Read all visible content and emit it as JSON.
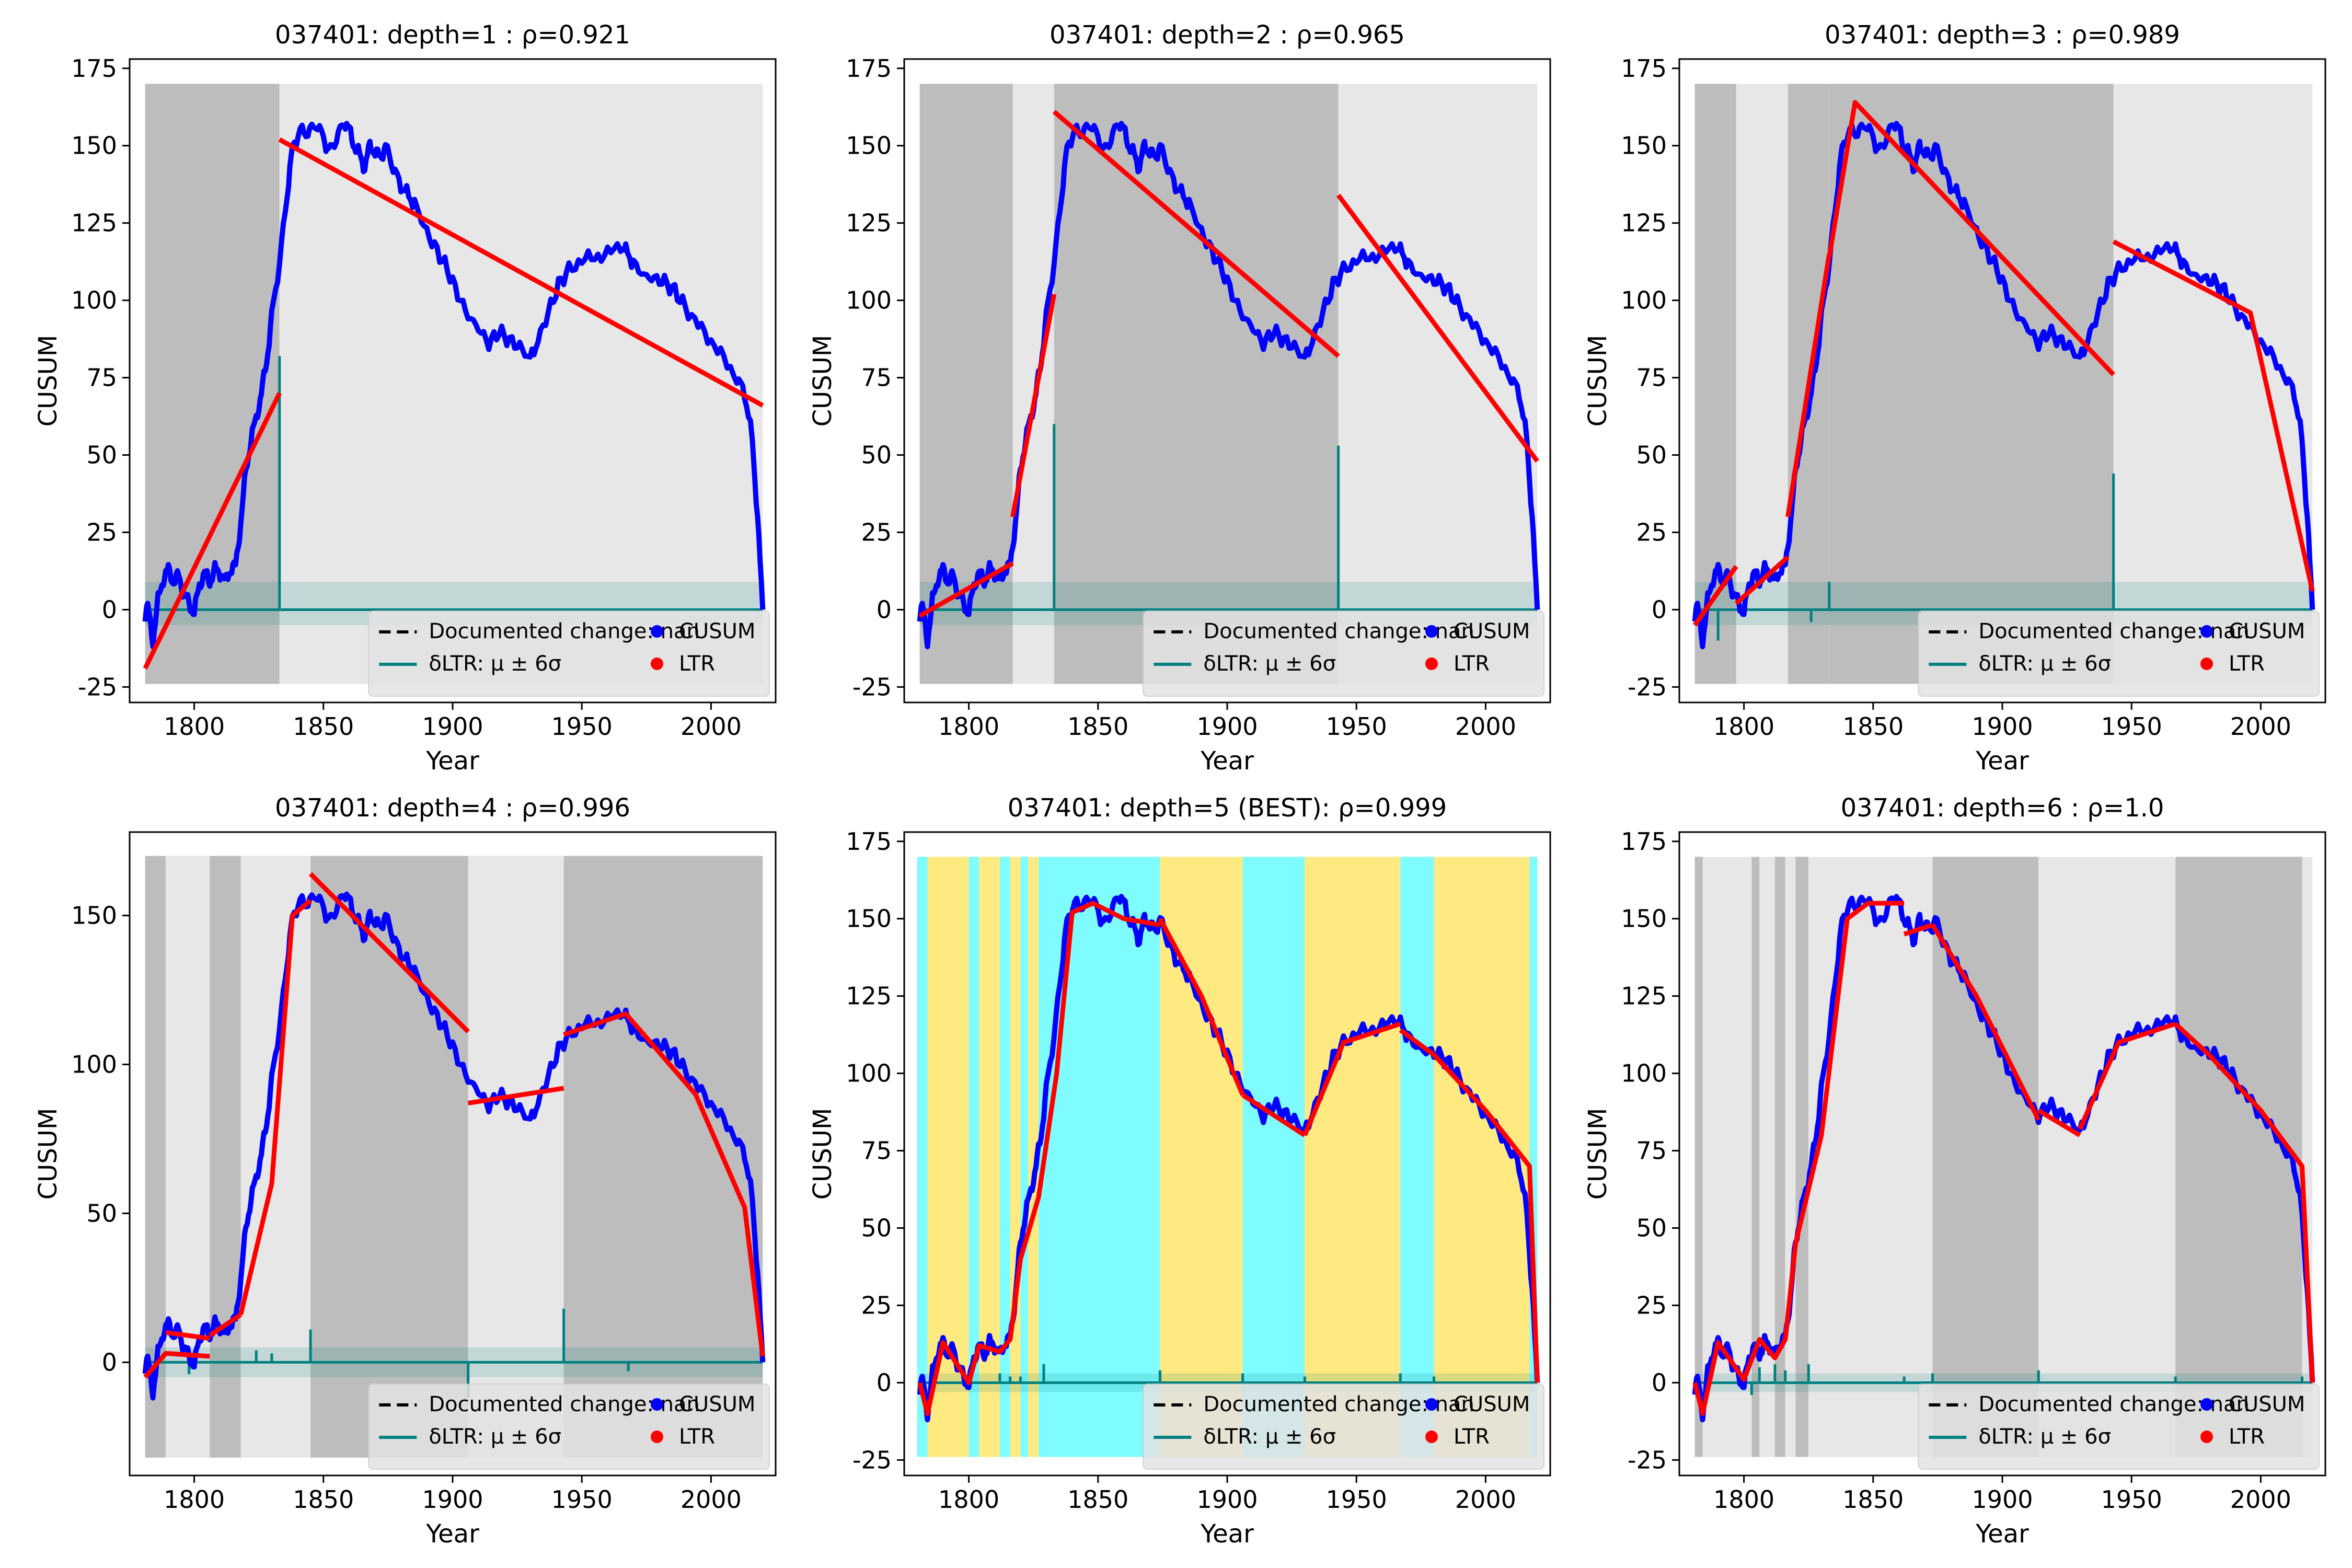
{
  "colors": {
    "cusum": "#0000ff",
    "ltr": "#ff0000",
    "dltr": "#008080",
    "seg_dark": "#bdbdbd",
    "seg_light": "#e7e7e7",
    "seg_cyan": "#7ffcff",
    "seg_yellow": "#ffe981",
    "best_title": "#ff0000"
  },
  "legend": {
    "documented": "Documented change: nan",
    "dltr": "δLTR: μ ± 6σ",
    "cusum": "CUSUM",
    "ltr": "LTR"
  },
  "chart_data": [
    {
      "type": "line",
      "title": "037401: depth=1 : ρ=0.921",
      "xlabel": "Year",
      "ylabel": "CUSUM",
      "xlim": [
        1775,
        2025
      ],
      "ylim": [
        -30,
        178
      ],
      "xticks": [
        1800,
        1850,
        1900,
        1950,
        2000
      ],
      "yticks": [
        -25,
        0,
        25,
        50,
        75,
        100,
        125,
        150,
        175
      ],
      "grid": false,
      "legend_position": "lower-right",
      "segment_style": "gray",
      "segments": [
        [
          1781,
          1833,
          "dark"
        ],
        [
          1833,
          2020,
          "light"
        ]
      ],
      "ltr_segments": [
        [
          [
            1781,
            -19
          ],
          [
            1833,
            70
          ]
        ],
        [
          [
            1833,
            152
          ],
          [
            2020,
            66
          ]
        ]
      ],
      "dltr_spikes": [
        [
          1833,
          82
        ]
      ],
      "band": [
        -5,
        9
      ],
      "band_x": [
        1781,
        2020
      ]
    },
    {
      "type": "line",
      "title": "037401: depth=2 : ρ=0.965",
      "xlabel": "Year",
      "ylabel": "CUSUM",
      "xlim": [
        1775,
        2025
      ],
      "ylim": [
        -30,
        178
      ],
      "xticks": [
        1800,
        1850,
        1900,
        1950,
        2000
      ],
      "yticks": [
        -25,
        0,
        25,
        50,
        75,
        100,
        125,
        150,
        175
      ],
      "grid": false,
      "legend_position": "lower-right",
      "segment_style": "gray",
      "segments": [
        [
          1781,
          1817,
          "dark"
        ],
        [
          1817,
          1833,
          "light"
        ],
        [
          1833,
          1943,
          "dark"
        ],
        [
          1943,
          2020,
          "light"
        ]
      ],
      "ltr_segments": [
        [
          [
            1781,
            -2
          ],
          [
            1817,
            15
          ]
        ],
        [
          [
            1817,
            30
          ],
          [
            1833,
            102
          ]
        ],
        [
          [
            1833,
            161
          ],
          [
            1943,
            82
          ]
        ],
        [
          [
            1943,
            134
          ],
          [
            2020,
            48
          ]
        ]
      ],
      "dltr_spikes": [
        [
          1833,
          60
        ],
        [
          1943,
          53
        ]
      ],
      "band": [
        -5,
        9
      ],
      "band_x": [
        1781,
        2020
      ]
    },
    {
      "type": "line",
      "title": "037401: depth=3 : ρ=0.989",
      "xlabel": "Year",
      "ylabel": "CUSUM",
      "xlim": [
        1775,
        2025
      ],
      "ylim": [
        -30,
        178
      ],
      "xticks": [
        1800,
        1850,
        1900,
        1950,
        2000
      ],
      "yticks": [
        -25,
        0,
        25,
        50,
        75,
        100,
        125,
        150,
        175
      ],
      "grid": false,
      "legend_position": "lower-right",
      "segment_style": "gray",
      "segments": [
        [
          1781,
          1797,
          "dark"
        ],
        [
          1797,
          1817,
          "light"
        ],
        [
          1817,
          1833,
          "dark"
        ],
        [
          1833,
          1943,
          "dark"
        ],
        [
          1943,
          2020,
          "light"
        ]
      ],
      "ltr_segments": [
        [
          [
            1781,
            -5
          ],
          [
            1797,
            14
          ]
        ],
        [
          [
            1797,
            2
          ],
          [
            1817,
            17
          ]
        ],
        [
          [
            1817,
            30
          ],
          [
            1833,
            115
          ]
        ],
        [
          [
            1833,
            114
          ],
          [
            1843,
            164
          ],
          [
            1943,
            76
          ]
        ],
        [
          [
            1943,
            119
          ],
          [
            1996,
            96
          ],
          [
            2020,
            6
          ]
        ]
      ],
      "dltr_spikes": [
        [
          1833,
          9
        ],
        [
          1943,
          44
        ],
        [
          1790,
          -10
        ],
        [
          1826,
          -4
        ]
      ],
      "band": [
        -5,
        9
      ],
      "band_x": [
        1781,
        2020
      ]
    },
    {
      "type": "line",
      "title": "037401: depth=4 : ρ=0.996",
      "xlabel": "Year",
      "ylabel": "CUSUM",
      "xlim": [
        1775,
        2025
      ],
      "ylim": [
        -38,
        178
      ],
      "xticks": [
        1800,
        1850,
        1900,
        1950,
        2000
      ],
      "yticks": [
        0,
        50,
        100,
        150
      ],
      "grid": false,
      "legend_position": "lower-right",
      "segment_style": "gray",
      "segments": [
        [
          1781,
          1789,
          "dark"
        ],
        [
          1789,
          1806,
          "light"
        ],
        [
          1806,
          1818,
          "dark"
        ],
        [
          1818,
          1845,
          "light"
        ],
        [
          1845,
          1906,
          "dark"
        ],
        [
          1906,
          1943,
          "light"
        ],
        [
          1943,
          2020,
          "dark"
        ]
      ],
      "ltr_segments": [
        [
          [
            1781,
            -5
          ],
          [
            1789,
            3
          ],
          [
            1806,
            2
          ]
        ],
        [
          [
            1789,
            10
          ],
          [
            1806,
            8
          ]
        ],
        [
          [
            1806,
            9
          ],
          [
            1818,
            16
          ]
        ],
        [
          [
            1818,
            16
          ],
          [
            1830,
            60
          ],
          [
            1838,
            150
          ],
          [
            1845,
            155
          ]
        ],
        [
          [
            1845,
            164
          ],
          [
            1906,
            111
          ]
        ],
        [
          [
            1906,
            87
          ],
          [
            1943,
            92
          ]
        ],
        [
          [
            1943,
            110
          ],
          [
            1967,
            117
          ],
          [
            1994,
            90
          ],
          [
            2013,
            52
          ],
          [
            2020,
            2
          ]
        ]
      ],
      "dltr_spikes": [
        [
          1845,
          11
        ],
        [
          1906,
          -12
        ],
        [
          1943,
          18
        ],
        [
          1824,
          4
        ],
        [
          1830,
          3
        ],
        [
          1798,
          -4
        ],
        [
          1968,
          -3
        ]
      ],
      "band": [
        -5,
        5
      ],
      "band_x": [
        1781,
        2020
      ]
    },
    {
      "type": "line",
      "title": "037401: depth=5 (BEST): ρ=0.999",
      "xlabel": "Year",
      "ylabel": "CUSUM",
      "xlim": [
        1775,
        2025
      ],
      "ylim": [
        -30,
        178
      ],
      "xticks": [
        1800,
        1850,
        1900,
        1950,
        2000
      ],
      "yticks": [
        -25,
        0,
        25,
        50,
        75,
        100,
        125,
        150,
        175
      ],
      "grid": false,
      "legend_position": "lower-right",
      "segment_style": "color",
      "best": true,
      "segments": [
        [
          1780,
          1784,
          "cyan"
        ],
        [
          1784,
          1800,
          "yellow"
        ],
        [
          1800,
          1804,
          "cyan"
        ],
        [
          1804,
          1812,
          "yellow"
        ],
        [
          1812,
          1816,
          "cyan"
        ],
        [
          1816,
          1820,
          "yellow"
        ],
        [
          1820,
          1823,
          "cyan"
        ],
        [
          1823,
          1827,
          "yellow"
        ],
        [
          1827,
          1829,
          "cyan"
        ],
        [
          1829,
          1874,
          "cyan"
        ],
        [
          1874,
          1906,
          "yellow"
        ],
        [
          1906,
          1930,
          "cyan"
        ],
        [
          1930,
          1967,
          "yellow"
        ],
        [
          1967,
          1980,
          "cyan"
        ],
        [
          1980,
          2017,
          "yellow"
        ],
        [
          2017,
          2020,
          "cyan"
        ]
      ],
      "ltr_segments": [
        [
          [
            1781,
            0
          ],
          [
            1784,
            -10
          ],
          [
            1790,
            13
          ],
          [
            1800,
            0
          ],
          [
            1804,
            12
          ],
          [
            1812,
            10
          ],
          [
            1816,
            14
          ],
          [
            1820,
            40
          ],
          [
            1827,
            60
          ],
          [
            1834,
            100
          ],
          [
            1840,
            152
          ],
          [
            1848,
            155
          ],
          [
            1860,
            150
          ],
          [
            1874,
            148
          ]
        ],
        [
          [
            1874,
            150
          ],
          [
            1890,
            125
          ],
          [
            1906,
            93
          ]
        ],
        [
          [
            1906,
            93
          ],
          [
            1930,
            80
          ]
        ],
        [
          [
            1930,
            80
          ],
          [
            1945,
            110
          ],
          [
            1967,
            116
          ]
        ],
        [
          [
            1967,
            114
          ],
          [
            1980,
            106
          ]
        ],
        [
          [
            1980,
            106
          ],
          [
            2000,
            88
          ],
          [
            2017,
            70
          ],
          [
            2020,
            0
          ]
        ]
      ],
      "dltr_spikes": [
        [
          1829,
          6
        ],
        [
          1874,
          4
        ],
        [
          1906,
          3
        ],
        [
          1930,
          2
        ],
        [
          1967,
          3
        ],
        [
          1980,
          2
        ],
        [
          1812,
          3
        ],
        [
          1816,
          2
        ],
        [
          1820,
          2
        ]
      ],
      "band": [
        -3,
        3
      ],
      "band_x": [
        1781,
        2020
      ]
    },
    {
      "type": "line",
      "title": "037401: depth=6 : ρ=1.0",
      "xlabel": "Year",
      "ylabel": "CUSUM",
      "xlim": [
        1775,
        2025
      ],
      "ylim": [
        -30,
        178
      ],
      "xticks": [
        1800,
        1850,
        1900,
        1950,
        2000
      ],
      "yticks": [
        -25,
        0,
        25,
        50,
        75,
        100,
        125,
        150,
        175
      ],
      "grid": false,
      "legend_position": "lower-right",
      "segment_style": "gray",
      "segments": [
        [
          1781,
          1784,
          "dark"
        ],
        [
          1784,
          1803,
          "light"
        ],
        [
          1803,
          1806,
          "dark"
        ],
        [
          1806,
          1812,
          "light"
        ],
        [
          1812,
          1816,
          "dark"
        ],
        [
          1816,
          1820,
          "light"
        ],
        [
          1820,
          1825,
          "dark"
        ],
        [
          1825,
          1862,
          "light"
        ],
        [
          1862,
          1873,
          "light"
        ],
        [
          1873,
          1914,
          "dark"
        ],
        [
          1914,
          1967,
          "light"
        ],
        [
          1967,
          2016,
          "dark"
        ],
        [
          2016,
          2020,
          "light"
        ]
      ],
      "ltr_segments": [
        [
          [
            1781,
            0
          ],
          [
            1784,
            -10
          ],
          [
            1790,
            13
          ],
          [
            1800,
            1
          ],
          [
            1806,
            14
          ],
          [
            1812,
            8
          ],
          [
            1816,
            14
          ],
          [
            1820,
            45
          ],
          [
            1830,
            80
          ],
          [
            1840,
            150
          ],
          [
            1848,
            155
          ],
          [
            1862,
            155
          ]
        ],
        [
          [
            1862,
            145
          ],
          [
            1873,
            148
          ]
        ],
        [
          [
            1873,
            148
          ],
          [
            1890,
            125
          ],
          [
            1905,
            100
          ],
          [
            1914,
            85
          ]
        ],
        [
          [
            1914,
            88
          ],
          [
            1930,
            80
          ]
        ],
        [
          [
            1930,
            82
          ],
          [
            1945,
            110
          ],
          [
            1967,
            116
          ]
        ],
        [
          [
            1967,
            116
          ],
          [
            1980,
            106
          ],
          [
            2000,
            88
          ],
          [
            2016,
            70
          ],
          [
            2020,
            0
          ]
        ]
      ],
      "dltr_spikes": [
        [
          1825,
          6
        ],
        [
          1862,
          2
        ],
        [
          1873,
          3
        ],
        [
          1914,
          4
        ],
        [
          1967,
          2
        ],
        [
          2016,
          2
        ],
        [
          1806,
          5
        ],
        [
          1812,
          6
        ],
        [
          1816,
          4
        ],
        [
          1803,
          -4
        ]
      ],
      "band": [
        -3,
        3
      ],
      "band_x": [
        1781,
        2020
      ]
    }
  ]
}
